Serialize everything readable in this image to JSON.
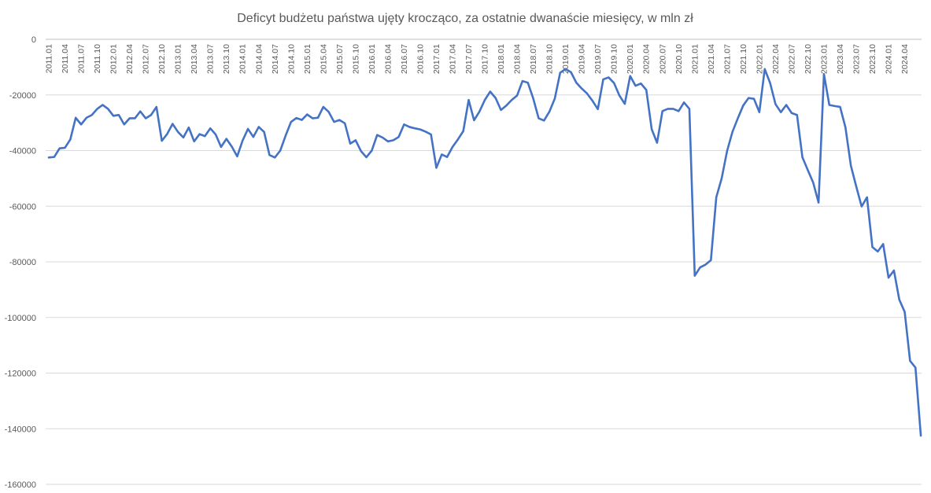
{
  "chart_data": {
    "type": "line",
    "title": "Deficyt budżetu państwa ujęty krocząco, za ostatnie dwanaście miesięcy, w mln zł",
    "ylim": [
      -160000,
      0
    ],
    "yticks": [
      0,
      -20000,
      -40000,
      -60000,
      -80000,
      -100000,
      -120000,
      -140000,
      -160000
    ],
    "ytick_labels": [
      "0",
      "-20000",
      "-40000",
      "-60000",
      "-80000",
      "-100000",
      "-120000",
      "-140000",
      "-160000"
    ],
    "x_tick_labels": [
      "2011.01",
      "2011.04",
      "2011.07",
      "2011.10",
      "2012.01",
      "2012.04",
      "2012.07",
      "2012.10",
      "2013.01",
      "2013.04",
      "2013.07",
      "2013.10",
      "2014.01",
      "2014.04",
      "2014.07",
      "2014.10",
      "2015.01",
      "2015.04",
      "2015.07",
      "2015.10",
      "2016.01",
      "2016.04",
      "2016.07",
      "2016.10",
      "2017.01",
      "2017.04",
      "2017.07",
      "2017.10",
      "2018.01",
      "2018.04",
      "2018.07",
      "2018.10",
      "2019.01",
      "2019.04",
      "2019.07",
      "2019.10",
      "2020.01",
      "2020.04",
      "2020.07",
      "2020.10",
      "2021.01",
      "2021.04",
      "2021.07",
      "2021.10",
      "2022.01",
      "2022.04",
      "2022.07",
      "2022.10",
      "2023.01",
      "2023.04",
      "2023.07",
      "2023.10",
      "2024.01",
      "2024.04"
    ],
    "grid": true,
    "legend": "none",
    "series": [
      {
        "color": "#4472c4",
        "x_start": "2011.01",
        "x_end": "2024.06",
        "values": [
          -42500,
          -42300,
          -39200,
          -39000,
          -36000,
          -28200,
          -30600,
          -28200,
          -27200,
          -25000,
          -23600,
          -25000,
          -27500,
          -27200,
          -30600,
          -28400,
          -28400,
          -25900,
          -28400,
          -27200,
          -24300,
          -36500,
          -34000,
          -30400,
          -33300,
          -35300,
          -31700,
          -36700,
          -34100,
          -34800,
          -32000,
          -34200,
          -38700,
          -35800,
          -38600,
          -42100,
          -36400,
          -32200,
          -35100,
          -31500,
          -33300,
          -41600,
          -42500,
          -40000,
          -34600,
          -29700,
          -28300,
          -29000,
          -27000,
          -28400,
          -28200,
          -24300,
          -26100,
          -29700,
          -29000,
          -30200,
          -37500,
          -36300,
          -40200,
          -42400,
          -40000,
          -34400,
          -35300,
          -36700,
          -36300,
          -35100,
          -30600,
          -31500,
          -32000,
          -32400,
          -33200,
          -34200,
          -46200,
          -41400,
          -42300,
          -38700,
          -36000,
          -33000,
          -21800,
          -29100,
          -26000,
          -21800,
          -18800,
          -21100,
          -25400,
          -23800,
          -21800,
          -20200,
          -15000,
          -15600,
          -21300,
          -28400,
          -29200,
          -26000,
          -21300,
          -12000,
          -10700,
          -11800,
          -15600,
          -17700,
          -19500,
          -22100,
          -25100,
          -14400,
          -13700,
          -15700,
          -20200,
          -23200,
          -13200,
          -16700,
          -15900,
          -18200,
          -32300,
          -37200,
          -25800,
          -25000,
          -25000,
          -25800,
          -22700,
          -25000,
          -85000,
          -82000,
          -81000,
          -79400,
          -56800,
          -50000,
          -40200,
          -33300,
          -28400,
          -23800,
          -21100,
          -21400,
          -26200,
          -10700,
          -15700,
          -23300,
          -26200,
          -23600,
          -26500,
          -27200,
          -42400,
          -47000,
          -51500,
          -58700,
          -12500,
          -23600,
          -24000,
          -24300,
          -31700,
          -45400,
          -52900,
          -60100,
          -56800,
          -74700,
          -76300,
          -73600,
          -85700,
          -83100,
          -93600,
          -98000,
          -115600,
          -118000,
          -142500
        ]
      }
    ]
  }
}
